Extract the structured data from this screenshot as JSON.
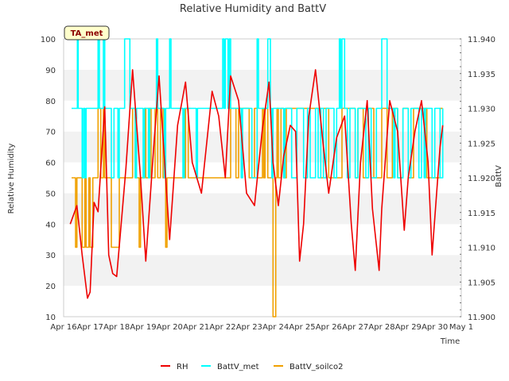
{
  "chart_data": {
    "type": "line",
    "title": "Relative Humidity and BattV",
    "badge": "TA_met",
    "xlabel": "Time",
    "ylabel_left": "Relative Humidity",
    "ylabel_right": "BattV",
    "x_ticks": [
      "Apr 16",
      "Apr 17",
      "Apr 18",
      "Apr 19",
      "Apr 20",
      "Apr 21",
      "Apr 22",
      "Apr 23",
      "Apr 24",
      "Apr 25",
      "Apr 26",
      "Apr 27",
      "Apr 28",
      "Apr 29",
      "Apr 30",
      "May 1"
    ],
    "xlim_days": [
      0,
      15
    ],
    "ylim_left": [
      10,
      100
    ],
    "y_ticks_left": [
      "10",
      "20",
      "30",
      "40",
      "50",
      "60",
      "70",
      "80",
      "90",
      "100"
    ],
    "ylim_right": [
      11.9,
      11.94
    ],
    "y_ticks_right": [
      "11.900",
      "11.905",
      "11.910",
      "11.915",
      "11.920",
      "11.925",
      "11.930",
      "11.935",
      "11.940"
    ],
    "grid": "horizontal bands",
    "legend_position": "bottom",
    "series": [
      {
        "name": "RH",
        "color": "#ee0000",
        "axis": "left",
        "x": [
          0.25,
          0.5,
          0.7,
          0.9,
          1.0,
          1.15,
          1.3,
          1.55,
          1.7,
          1.85,
          2.0,
          2.15,
          2.35,
          2.6,
          2.9,
          3.1,
          3.4,
          3.6,
          3.85,
          4.0,
          4.3,
          4.6,
          4.85,
          5.2,
          5.6,
          5.85,
          6.1,
          6.3,
          6.6,
          6.9,
          7.2,
          7.5,
          7.75,
          7.9,
          8.1,
          8.3,
          8.55,
          8.75,
          8.9,
          9.05,
          9.25,
          9.5,
          9.8,
          10.0,
          10.3,
          10.6,
          10.85,
          11.0,
          11.2,
          11.45,
          11.65,
          11.9,
          12.0,
          12.3,
          12.6,
          12.85,
          13.0,
          13.25,
          13.5,
          13.75,
          13.9,
          14.0,
          14.2,
          14.3
        ],
        "y": [
          40,
          46,
          30,
          16,
          18,
          47,
          44,
          78,
          30,
          24,
          23,
          38,
          58,
          90,
          55,
          28,
          65,
          88,
          55,
          35,
          72,
          86,
          60,
          50,
          83,
          75,
          55,
          88,
          80,
          50,
          46,
          71,
          86,
          60,
          46,
          62,
          72,
          70,
          28,
          40,
          75,
          90,
          65,
          50,
          68,
          75,
          40,
          25,
          60,
          80,
          45,
          25,
          45,
          80,
          70,
          38,
          55,
          70,
          80,
          60,
          30,
          42,
          65,
          72
        ]
      },
      {
        "name": "BattV_met",
        "color": "#00ffff",
        "axis": "right",
        "style": "step",
        "x": [
          0.3,
          0.5,
          0.52,
          0.55,
          0.6,
          0.7,
          0.75,
          0.8,
          0.85,
          0.9,
          1.0,
          1.05,
          1.1,
          1.15,
          1.3,
          1.35,
          1.45,
          1.5,
          1.55,
          1.65,
          1.8,
          1.9,
          2.0,
          2.05,
          2.1,
          2.2,
          2.3,
          2.5,
          2.55,
          2.6,
          2.7,
          2.75,
          3.0,
          3.05,
          3.1,
          3.2,
          3.25,
          3.5,
          3.55,
          3.6,
          3.8,
          3.85,
          4.0,
          4.05,
          4.5,
          4.55,
          4.6,
          4.7,
          4.75,
          5.0,
          5.05,
          5.2,
          5.3,
          5.5,
          5.6,
          6.0,
          6.05,
          6.1,
          6.2,
          6.25,
          6.3,
          6.4,
          6.5,
          6.7,
          6.75,
          6.9,
          7.0,
          7.1,
          7.3,
          7.35,
          7.4,
          7.6,
          7.7,
          7.8,
          7.85,
          7.9,
          8.0,
          8.05,
          8.3,
          8.35,
          8.5,
          8.6,
          8.8,
          9.0,
          9.05,
          9.2,
          9.3,
          9.5,
          9.55,
          9.6,
          9.7,
          9.8,
          9.9,
          10.0,
          10.05,
          10.2,
          10.3,
          10.4,
          10.45,
          10.5,
          10.6,
          10.7,
          10.8,
          11.0,
          11.1,
          11.3,
          11.4,
          11.5,
          11.6,
          11.8,
          11.9,
          12.0,
          12.2,
          12.3,
          12.45,
          12.5,
          12.6,
          12.8,
          12.9,
          13.0,
          13.1,
          13.3,
          13.4,
          13.5,
          13.6,
          13.65,
          13.8,
          13.9,
          14.0,
          14.1,
          14.2,
          14.3
        ],
        "y": [
          11.93,
          11.93,
          11.94,
          11.93,
          11.93,
          11.92,
          11.93,
          11.92,
          11.93,
          11.93,
          11.93,
          11.93,
          11.93,
          11.93,
          11.94,
          11.93,
          11.93,
          11.94,
          11.93,
          11.93,
          11.92,
          11.93,
          11.93,
          11.92,
          11.93,
          11.93,
          11.94,
          11.93,
          11.93,
          11.93,
          11.92,
          11.93,
          11.92,
          11.93,
          11.93,
          11.92,
          11.93,
          11.94,
          11.93,
          11.93,
          11.92,
          11.93,
          11.94,
          11.93,
          11.92,
          11.93,
          11.93,
          11.93,
          11.93,
          11.92,
          11.93,
          11.93,
          11.93,
          11.93,
          11.93,
          11.94,
          11.93,
          11.94,
          11.93,
          11.94,
          11.93,
          11.93,
          11.93,
          11.92,
          11.93,
          11.93,
          11.93,
          11.92,
          11.94,
          11.93,
          11.93,
          11.93,
          11.94,
          11.93,
          11.92,
          11.93,
          11.93,
          11.93,
          11.92,
          11.93,
          11.93,
          11.92,
          11.93,
          11.93,
          11.92,
          11.93,
          11.92,
          11.93,
          11.93,
          11.92,
          11.93,
          11.92,
          11.93,
          11.93,
          11.93,
          11.92,
          11.93,
          11.94,
          11.93,
          11.94,
          11.93,
          11.92,
          11.93,
          11.92,
          11.93,
          11.93,
          11.92,
          11.93,
          11.92,
          11.93,
          11.93,
          11.94,
          11.93,
          11.93,
          11.92,
          11.93,
          11.92,
          11.93,
          11.93,
          11.92,
          11.93,
          11.93,
          11.92,
          11.93,
          11.92,
          11.93,
          11.93,
          11.92,
          11.93,
          11.93,
          11.92,
          11.93
        ]
      },
      {
        "name": "BattV_soilco2",
        "color": "#f0a000",
        "axis": "right",
        "style": "step",
        "x": [
          0.3,
          0.45,
          0.5,
          0.65,
          0.7,
          0.8,
          0.85,
          0.95,
          1.0,
          1.1,
          1.15,
          1.3,
          1.4,
          1.5,
          1.55,
          1.8,
          2.1,
          2.2,
          2.6,
          2.7,
          2.85,
          2.9,
          3.05,
          3.1,
          3.2,
          3.3,
          3.45,
          3.55,
          3.65,
          3.75,
          3.85,
          3.9,
          3.95,
          4.0,
          4.05,
          4.1,
          4.3,
          4.6,
          4.7,
          5.0,
          5.5,
          6.0,
          6.3,
          6.5,
          6.6,
          7.0,
          7.2,
          7.3,
          7.5,
          7.55,
          7.6,
          7.7,
          7.75,
          7.9,
          8.0,
          8.02,
          8.05,
          8.1,
          8.2,
          8.3,
          8.4,
          8.5,
          9.0,
          9.3,
          9.5,
          9.7,
          9.8,
          10.0,
          10.5,
          10.7,
          11.0,
          11.1,
          11.3,
          11.5,
          11.7,
          12.0,
          12.2,
          12.4,
          12.6,
          12.8,
          13.0,
          13.2,
          13.5,
          13.7,
          14.0,
          14.2,
          14.3
        ],
        "y": [
          11.92,
          11.91,
          11.92,
          11.92,
          11.91,
          11.92,
          11.91,
          11.92,
          11.91,
          11.92,
          11.92,
          11.93,
          11.92,
          11.93,
          11.92,
          11.91,
          11.92,
          11.92,
          11.93,
          11.92,
          11.91,
          11.92,
          11.93,
          11.92,
          11.93,
          11.92,
          11.93,
          11.92,
          11.93,
          11.92,
          11.91,
          11.92,
          11.92,
          11.92,
          11.92,
          11.92,
          11.92,
          11.93,
          11.92,
          11.92,
          11.92,
          11.92,
          11.93,
          11.92,
          11.93,
          11.92,
          11.93,
          11.92,
          11.93,
          11.92,
          11.93,
          11.92,
          11.92,
          11.9,
          11.92,
          11.92,
          11.93,
          11.92,
          11.93,
          11.92,
          11.93,
          11.93,
          11.93,
          11.93,
          11.93,
          11.92,
          11.93,
          11.92,
          11.93,
          11.93,
          11.92,
          11.93,
          11.92,
          11.93,
          11.92,
          11.93,
          11.92,
          11.93,
          11.92,
          11.93,
          11.92,
          11.93,
          11.93,
          11.92,
          11.92,
          11.93,
          11.93
        ]
      }
    ]
  }
}
